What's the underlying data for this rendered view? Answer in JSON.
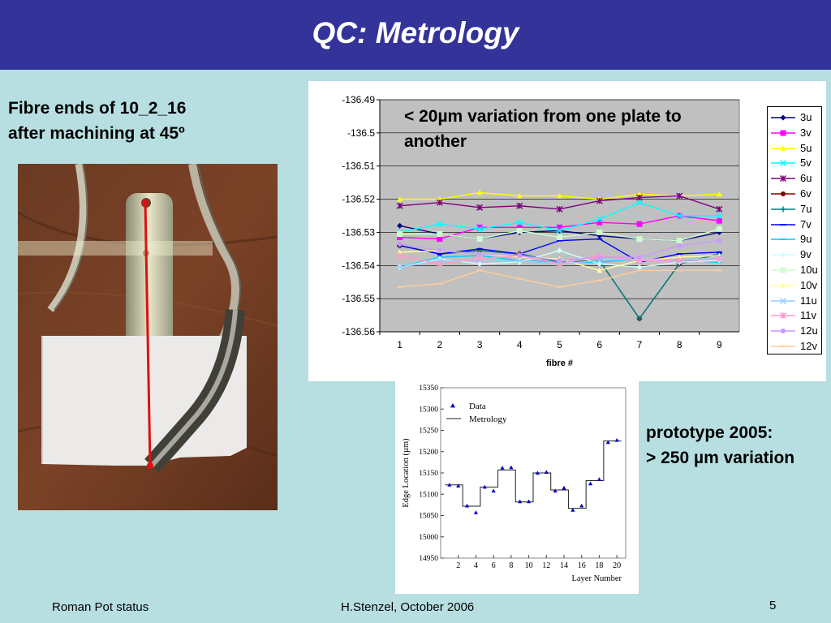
{
  "slide": {
    "title": "QC: Metrology",
    "left_caption": [
      "Fibre ends of 10_2_16",
      "after machining at 45º"
    ],
    "chart_annotation": [
      "< 20µm variation from one plate to",
      "another"
    ],
    "proto_caption": [
      "prototype 2005:",
      "> 250 µm variation"
    ],
    "footer": {
      "left": "Roman Pot status",
      "center": "H.Stenzel, October 2006",
      "page": "5"
    }
  },
  "colors": {
    "header_bg": "#333399",
    "slide_bg": "#b7dfe2",
    "plot_bg": "#c0c0c0"
  },
  "chart_data": [
    {
      "type": "line",
      "xlabel": "fibre #",
      "ylabel": "",
      "x": [
        1,
        2,
        3,
        4,
        5,
        6,
        7,
        8,
        9
      ],
      "ylim": [
        -136.56,
        -136.49
      ],
      "yticks": [
        "-136.49",
        "-136.5",
        "-136.51",
        "-136.52",
        "-136.53",
        "-136.54",
        "-136.55",
        "-136.56"
      ],
      "grid": "horizontal",
      "legend": "right",
      "series": [
        {
          "name": "3u",
          "color": "#000080",
          "marker": "diamond",
          "values": [
            -136.528,
            -136.5305,
            -136.532,
            -136.53,
            -136.5295,
            -136.531,
            -136.532,
            -136.5325,
            -136.53
          ]
        },
        {
          "name": "3v",
          "color": "#ff00ff",
          "marker": "square",
          "values": [
            -136.5315,
            -136.532,
            -136.5285,
            -136.5285,
            -136.5285,
            -136.527,
            -136.5275,
            -136.525,
            -136.5265
          ]
        },
        {
          "name": "5u",
          "color": "#ffff00",
          "marker": "triangle",
          "values": [
            -136.52,
            -136.52,
            -136.518,
            -136.519,
            -136.519,
            -136.52,
            -136.5185,
            -136.519,
            -136.5185
          ]
        },
        {
          "name": "5v",
          "color": "#00ffff",
          "marker": "x",
          "values": [
            -136.53,
            -136.5275,
            -136.529,
            -136.527,
            -136.5295,
            -136.526,
            -136.521,
            -136.525,
            -136.525
          ]
        },
        {
          "name": "6u",
          "color": "#800080",
          "marker": "star",
          "values": [
            -136.522,
            -136.521,
            -136.5225,
            -136.522,
            -136.523,
            -136.5205,
            -136.5195,
            -136.519,
            -136.523
          ]
        },
        {
          "name": "6v",
          "color": "#800000",
          "marker": "circle",
          "values": [
            -136.534,
            -136.5365,
            -136.5355,
            -136.5365,
            -136.539,
            -136.5385,
            -136.556,
            -136.5395,
            -136.5365
          ]
        },
        {
          "name": "7u",
          "color": "#008080",
          "marker": "plus",
          "values": [
            -136.534,
            -136.5365,
            -136.5355,
            -136.5365,
            -136.539,
            -136.5385,
            -136.556,
            -136.5395,
            -136.5365
          ]
        },
        {
          "name": "7v",
          "color": "#0000ff",
          "marker": "dash",
          "values": [
            -136.534,
            -136.5365,
            -136.535,
            -136.5365,
            -136.5325,
            -136.532,
            -136.539,
            -136.5365,
            -136.536
          ]
        },
        {
          "name": "9u",
          "color": "#00ccff",
          "marker": "dash",
          "values": [
            -136.5405,
            -136.5375,
            -136.537,
            -136.5385,
            -136.539,
            -136.539,
            -136.538,
            -136.5385,
            -136.539
          ]
        },
        {
          "name": "9v",
          "color": "#ccffff",
          "marker": "diamond",
          "values": [
            -136.5405,
            -136.538,
            -136.5395,
            -136.539,
            -136.5355,
            -136.5395,
            -136.5405,
            -136.539,
            -136.5385
          ]
        },
        {
          "name": "10u",
          "color": "#ccffcc",
          "marker": "square",
          "values": [
            -136.5305,
            -136.5305,
            -136.532,
            -136.5295,
            -136.5315,
            -136.53,
            -136.532,
            -136.5325,
            -136.529
          ]
        },
        {
          "name": "10v",
          "color": "#ffff99",
          "marker": "triangle",
          "values": [
            -136.536,
            -136.5355,
            -136.5365,
            -136.5375,
            -136.538,
            -136.5415,
            -136.5385,
            -136.5375,
            -136.537
          ]
        },
        {
          "name": "11u",
          "color": "#99ccff",
          "marker": "x",
          "values": [
            -136.5405,
            -136.5385,
            -136.5385,
            -136.5385,
            -136.5395,
            -136.5385,
            -136.538,
            -136.5385,
            -136.5375
          ]
        },
        {
          "name": "11v",
          "color": "#ff99cc",
          "marker": "star",
          "values": [
            -136.537,
            -136.5395,
            -136.538,
            -136.537,
            -136.5395,
            -136.537,
            -136.5385,
            -136.5385,
            -136.538
          ]
        },
        {
          "name": "12u",
          "color": "#cc99ff",
          "marker": "circle",
          "values": [
            -136.5335,
            -136.5355,
            -136.5365,
            -136.537,
            -136.5385,
            -136.5375,
            -136.5375,
            -136.534,
            -136.5325
          ]
        },
        {
          "name": "12v",
          "color": "#ffcc99",
          "marker": "dash",
          "values": [
            -136.5465,
            -136.5455,
            -136.5415,
            -136.544,
            -136.5465,
            -136.5445,
            -136.5415,
            -136.5415,
            -136.5415
          ]
        }
      ]
    },
    {
      "type": "line",
      "xlabel": "Layer Number",
      "ylabel": "Edge Location (µm)",
      "xlim": [
        0,
        21
      ],
      "ylim": [
        14950,
        15350
      ],
      "xticks": [
        2,
        4,
        6,
        8,
        10,
        12,
        14,
        16,
        18,
        20
      ],
      "yticks": [
        14950,
        15000,
        15050,
        15100,
        15150,
        15200,
        15250,
        15300,
        15350
      ],
      "legend": "top-left",
      "series": [
        {
          "name": "Data",
          "color": "#0000cc",
          "marker": "triangle",
          "x": [
            1,
            2,
            3,
            4,
            5,
            6,
            7,
            8,
            9,
            10,
            11,
            12,
            13,
            14,
            15,
            16,
            17,
            18,
            19,
            20
          ],
          "values": [
            15122,
            15120,
            15073,
            15057,
            15117,
            15108,
            15162,
            15163,
            15083,
            15083,
            15150,
            15152,
            15108,
            15115,
            15063,
            15073,
            15125,
            15135,
            15222,
            15227
          ]
        },
        {
          "name": "Metrology",
          "color": "#222222",
          "marker": "none",
          "x": [
            1,
            2,
            3,
            4,
            5,
            6,
            7,
            8,
            9,
            10,
            11,
            12,
            13,
            14,
            15,
            16,
            17,
            18,
            19,
            20
          ],
          "values": [
            15122,
            15122,
            15072,
            15072,
            15117,
            15117,
            15157,
            15157,
            15082,
            15082,
            15150,
            15150,
            15110,
            15110,
            15067,
            15067,
            15132,
            15132,
            15225,
            15225
          ]
        }
      ]
    }
  ]
}
